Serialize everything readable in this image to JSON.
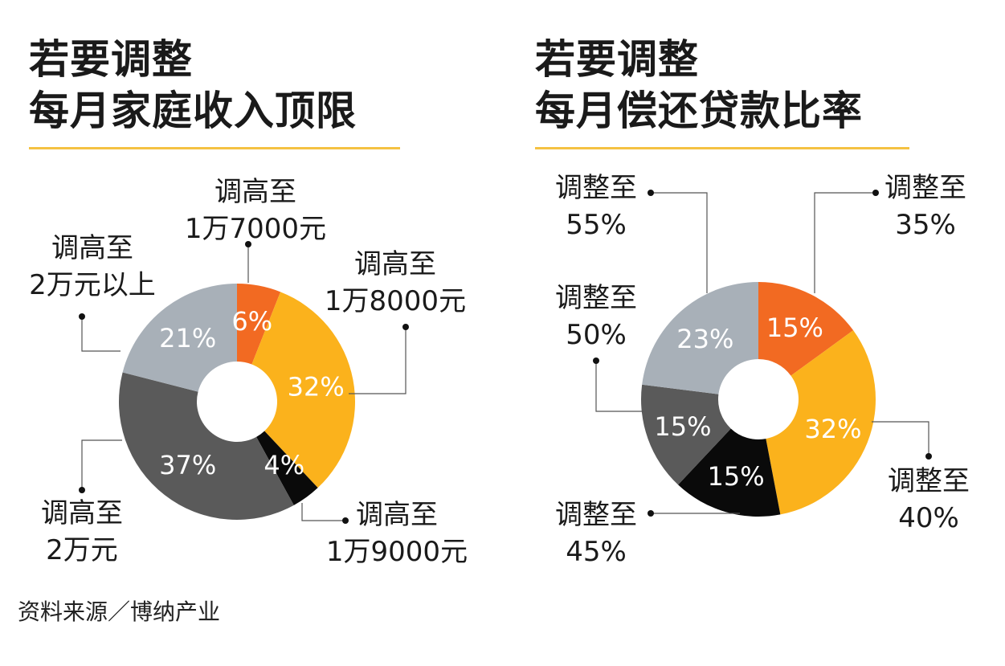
{
  "source": "资料来源／博纳产业",
  "colors": {
    "orange": "#f26a22",
    "yellow": "#fbb21c",
    "black": "#0a0a0a",
    "dark_gray": "#5a5a5a",
    "light_gray": "#a8b0b8",
    "title_rule": "#f5c242"
  },
  "chart_data": [
    {
      "type": "pie",
      "donut": true,
      "title_lines": [
        "若要调整",
        "每月家庭收入顶限"
      ],
      "slices": [
        {
          "value": 6,
          "label": "6%",
          "legend": [
            "调高至",
            "1万7000元"
          ],
          "color": "#f26a22"
        },
        {
          "value": 32,
          "label": "32%",
          "legend": [
            "调高至",
            "1万8000元"
          ],
          "color": "#fbb21c"
        },
        {
          "value": 4,
          "label": "4%",
          "legend": [
            "调高至",
            "1万9000元"
          ],
          "color": "#0a0a0a"
        },
        {
          "value": 37,
          "label": "37%",
          "legend": [
            "调高至",
            "2万元"
          ],
          "color": "#5a5a5a"
        },
        {
          "value": 21,
          "label": "21%",
          "legend": [
            "调高至",
            "2万元以上"
          ],
          "color": "#a8b0b8"
        }
      ]
    },
    {
      "type": "pie",
      "donut": true,
      "title_lines": [
        "若要调整",
        "每月偿还贷款比率"
      ],
      "slices": [
        {
          "value": 15,
          "label": "15%",
          "legend": [
            "调整至",
            "35%"
          ],
          "color": "#f26a22"
        },
        {
          "value": 32,
          "label": "32%",
          "legend": [
            "调整至",
            "40%"
          ],
          "color": "#fbb21c"
        },
        {
          "value": 15,
          "label": "15%",
          "legend": [
            "调整至",
            "45%"
          ],
          "color": "#0a0a0a"
        },
        {
          "value": 15,
          "label": "15%",
          "legend": [
            "调整至",
            "50%"
          ],
          "color": "#5a5a5a"
        },
        {
          "value": 23,
          "label": "23%",
          "legend": [
            "调整至",
            "55%"
          ],
          "color": "#a8b0b8"
        }
      ]
    }
  ]
}
